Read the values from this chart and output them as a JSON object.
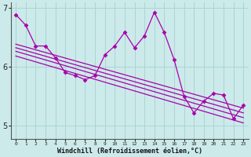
{
  "title": "",
  "xlabel": "Windchill (Refroidissement éolien,°C)",
  "ylabel": "",
  "bg_color": "#cceaea",
  "line_color": "#aa00aa",
  "grid_color": "#aad4d4",
  "axis_color": "#555555",
  "xlim": [
    -0.5,
    23.5
  ],
  "ylim": [
    4.78,
    7.08
  ],
  "yticks": [
    5,
    6,
    7
  ],
  "xticks": [
    0,
    1,
    2,
    3,
    4,
    5,
    6,
    7,
    8,
    9,
    10,
    11,
    12,
    13,
    14,
    15,
    16,
    17,
    18,
    19,
    20,
    21,
    22,
    23
  ],
  "jagged_line": {
    "x": [
      0,
      1,
      2,
      3,
      4,
      5,
      6,
      7,
      8,
      9,
      10,
      11,
      12,
      13,
      14,
      15,
      16,
      17,
      18,
      19,
      20,
      21,
      22,
      23
    ],
    "y": [
      6.88,
      6.7,
      6.35,
      6.35,
      6.15,
      5.9,
      5.85,
      5.78,
      5.85,
      6.2,
      6.35,
      6.58,
      6.32,
      6.52,
      6.92,
      6.58,
      6.12,
      5.5,
      5.22,
      5.42,
      5.55,
      5.52,
      5.12,
      5.35
    ]
  },
  "linear_lines": [
    {
      "x": [
        0,
        23
      ],
      "y": [
        6.38,
        5.3
      ]
    },
    {
      "x": [
        0,
        23
      ],
      "y": [
        6.32,
        5.22
      ]
    },
    {
      "x": [
        0,
        23
      ],
      "y": [
        6.26,
        5.14
      ]
    },
    {
      "x": [
        0,
        23
      ],
      "y": [
        6.18,
        5.05
      ]
    }
  ]
}
